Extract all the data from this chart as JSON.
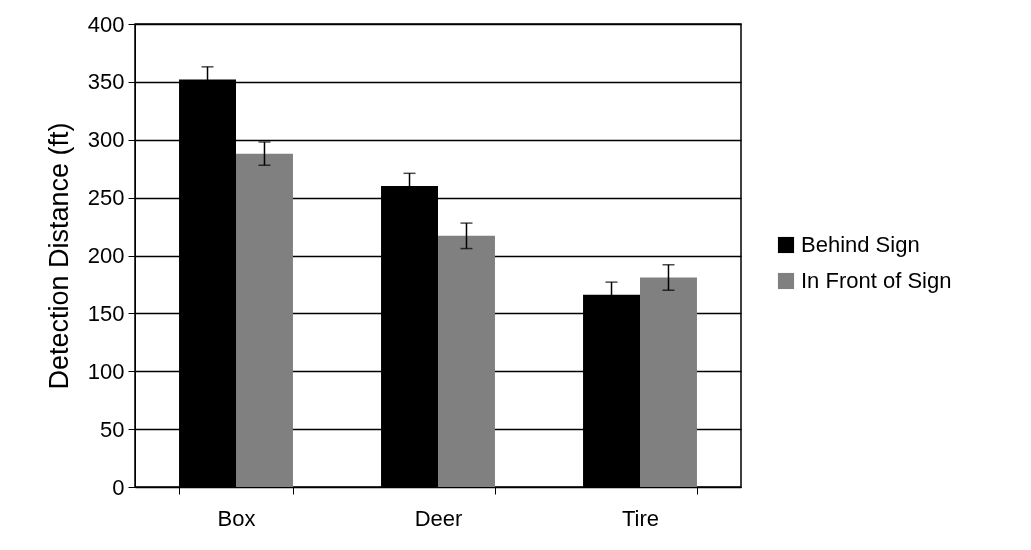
{
  "chart_data": {
    "type": "bar",
    "ylabel": "Detection Distance (ft)",
    "categories": [
      "Box",
      "Deer",
      "Tire"
    ],
    "series": [
      {
        "name": "Behind Sign",
        "color": "#000000",
        "values": [
          352,
          260,
          166
        ],
        "errors": [
          11,
          11,
          11
        ]
      },
      {
        "name": "In Front of Sign",
        "color": "#808080",
        "values": [
          288,
          217,
          181
        ],
        "errors": [
          10,
          11,
          11
        ]
      }
    ],
    "ylim": [
      0,
      400
    ],
    "yticks": [
      0,
      50,
      100,
      150,
      200,
      250,
      300,
      350,
      400
    ],
    "grid": "y",
    "legend": "right"
  }
}
